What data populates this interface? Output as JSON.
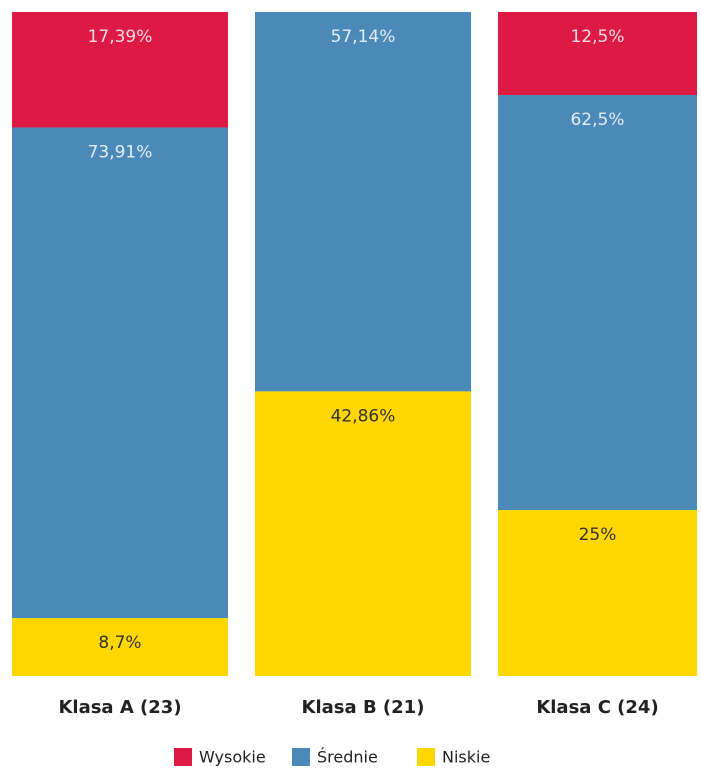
{
  "chart_data": {
    "type": "stacked-bar",
    "categories": [
      "Klasa A (23)",
      "Klasa B (21)",
      "Klasa C (24)"
    ],
    "series": [
      {
        "name": "Wysokie",
        "color": "#dc1a44",
        "values": [
          17.39,
          null,
          12.5
        ],
        "value_labels": [
          "17,39%",
          null,
          "12,5%"
        ]
      },
      {
        "name": "Średnie",
        "color": "#4a89b8",
        "values": [
          73.91,
          57.14,
          62.5
        ],
        "value_labels": [
          "73,91%",
          "57,14%",
          "62,5%"
        ]
      },
      {
        "name": "Niskie",
        "color": "#ffd700",
        "values": [
          8.7,
          42.86,
          25
        ],
        "value_labels": [
          "8,7%",
          "42,86%",
          "25%"
        ]
      }
    ],
    "legend": "bottom"
  }
}
